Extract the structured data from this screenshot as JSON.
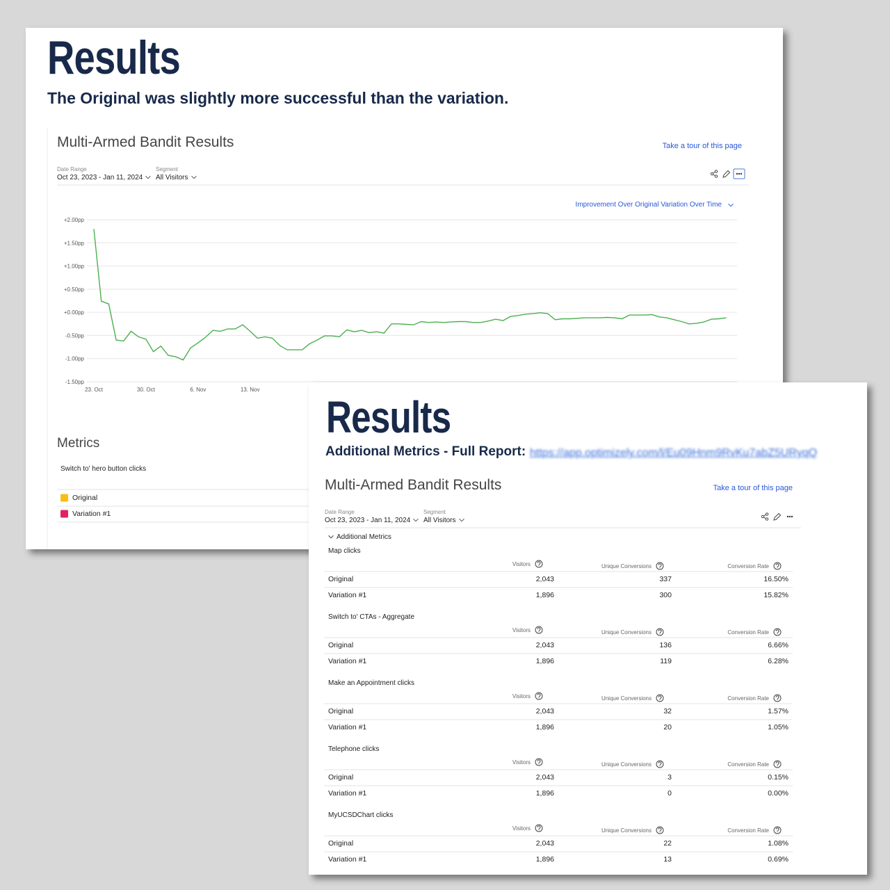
{
  "summary": {
    "title": "Results",
    "subtitle": "The Original was slightly more successful than the variation."
  },
  "report": {
    "title": "Multi-Armed Bandit Results",
    "tour": "Take a tour of this page",
    "date_range_label": "Date Range",
    "date_range": "Oct 23, 2023 - Jan 11, 2024",
    "segment_label": "Segment",
    "segment": "All Visitors"
  },
  "chart_data": {
    "type": "line",
    "title": "Improvement Over Original Variation Over Time",
    "categories": [
      "23. Oct",
      null,
      null,
      null,
      null,
      null,
      null,
      "30. Oct",
      null,
      null,
      null,
      null,
      null,
      null,
      "6. Nov",
      null,
      null,
      null,
      null,
      null,
      null,
      "13. Nov",
      null,
      null,
      null,
      null,
      null,
      null,
      null,
      null,
      null,
      null,
      null,
      null,
      null,
      null,
      null,
      null,
      null,
      null,
      null,
      null,
      null,
      null,
      null,
      null,
      null,
      null,
      null,
      null,
      null,
      null,
      null,
      null,
      null,
      null,
      null,
      null,
      null,
      null,
      null,
      null,
      null,
      null,
      null,
      null,
      null,
      null,
      null,
      null,
      null,
      null,
      null,
      null,
      null,
      null,
      null,
      null,
      null,
      null,
      null,
      null,
      null,
      null,
      null,
      null
    ],
    "values": [
      1.8,
      0.24,
      0.18,
      -0.6,
      -0.62,
      -0.41,
      -0.53,
      -0.58,
      -0.85,
      -0.73,
      -0.93,
      -0.96,
      -1.03,
      -0.77,
      -0.66,
      -0.54,
      -0.39,
      -0.41,
      -0.36,
      -0.36,
      -0.27,
      -0.41,
      -0.56,
      -0.53,
      -0.56,
      -0.72,
      -0.81,
      -0.81,
      -0.81,
      -0.68,
      -0.6,
      -0.51,
      -0.51,
      -0.53,
      -0.38,
      -0.42,
      -0.39,
      -0.44,
      -0.42,
      -0.45,
      -0.25,
      -0.25,
      -0.26,
      -0.27,
      -0.2,
      -0.22,
      -0.21,
      -0.22,
      -0.21,
      -0.2,
      -0.2,
      -0.22,
      -0.22,
      -0.19,
      -0.15,
      -0.18,
      -0.09,
      -0.07,
      -0.04,
      -0.03,
      -0.01,
      -0.03,
      -0.16,
      -0.14,
      -0.14,
      -0.13,
      -0.12,
      -0.12,
      -0.12,
      -0.11,
      -0.12,
      -0.14,
      -0.06,
      -0.06,
      -0.06,
      -0.05,
      -0.1,
      -0.12,
      -0.16,
      -0.2,
      -0.25,
      -0.24,
      -0.21,
      -0.15,
      -0.14,
      -0.12
    ],
    "color": "#4caf50",
    "grid": true,
    "ylim": [
      -1.5,
      2.0
    ],
    "yticks": [
      {
        "value": -1.5,
        "label": "-1.50pp"
      },
      {
        "value": -1.0,
        "label": "-1.00pp"
      },
      {
        "value": -0.5,
        "label": "-0.50pp"
      },
      {
        "value": 0,
        "label": "+0.00pp"
      },
      {
        "value": 0.5,
        "label": "+0.50pp"
      },
      {
        "value": 1.0,
        "label": "+1.00pp"
      },
      {
        "value": 1.5,
        "label": "+1.50pp"
      },
      {
        "value": 2.0,
        "label": "+2.00pp"
      }
    ]
  },
  "metrics": {
    "title": "Metrics",
    "metric": "Switch to' hero button clicks",
    "legend": [
      {
        "name": "Original",
        "color": "#f9bd14"
      },
      {
        "name": "Variation #1",
        "color": "#e3215e"
      }
    ]
  },
  "detail": {
    "title": "Results",
    "subtitle": "Additional Metrics - Full Report:",
    "link": "https://app.optimizely.com/l/Eu09Hnm9RvKu7abZ5URyqQ",
    "section": "Additional Metrics",
    "columns": [
      "Visitors",
      "Unique Conversions",
      "Conversion Rate"
    ],
    "tables": [
      {
        "name": "Map clicks",
        "rows": [
          [
            "Original",
            "2,043",
            "337",
            "16.50%"
          ],
          [
            "Variation #1",
            "1,896",
            "300",
            "15.82%"
          ]
        ]
      },
      {
        "name": "Switch to' CTAs - Aggregate",
        "rows": [
          [
            "Original",
            "2,043",
            "136",
            "6.66%"
          ],
          [
            "Variation #1",
            "1,896",
            "119",
            "6.28%"
          ]
        ]
      },
      {
        "name": "Make an Appointment clicks",
        "rows": [
          [
            "Original",
            "2,043",
            "32",
            "1.57%"
          ],
          [
            "Variation #1",
            "1,896",
            "20",
            "1.05%"
          ]
        ]
      },
      {
        "name": "Telephone clicks",
        "rows": [
          [
            "Original",
            "2,043",
            "3",
            "0.15%"
          ],
          [
            "Variation #1",
            "1,896",
            "0",
            "0.00%"
          ]
        ]
      },
      {
        "name": "MyUCSDChart clicks",
        "rows": [
          [
            "Original",
            "2,043",
            "22",
            "1.08%"
          ],
          [
            "Variation #1",
            "1,896",
            "13",
            "0.69%"
          ]
        ]
      }
    ]
  }
}
